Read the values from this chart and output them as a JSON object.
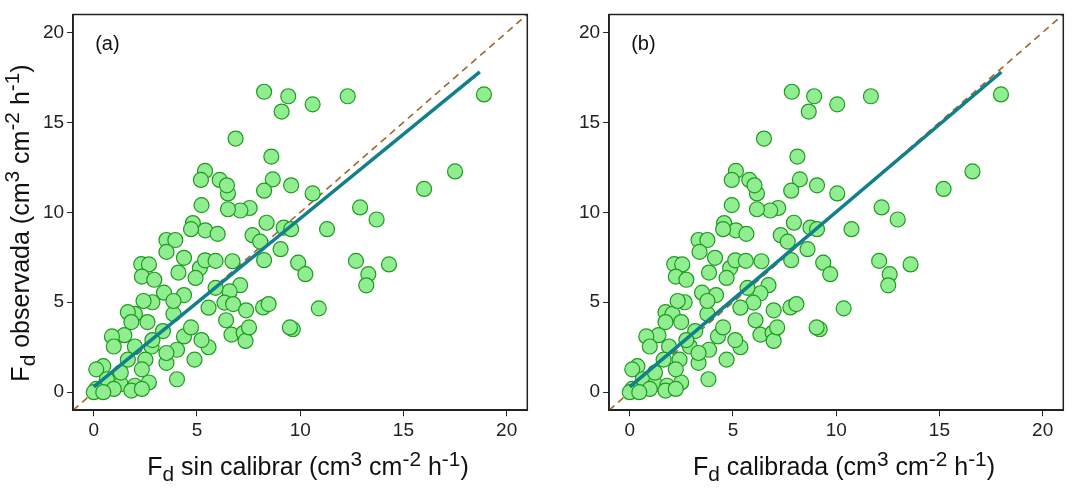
{
  "chart_data": [
    {
      "type": "scatter",
      "annotations": [
        "(a)"
      ],
      "xlabel": "F$_{d}$ sin calibrar (cm$^{3}$ cm$^{-2}$ h$^{-1}$)",
      "ylabel": "F$_{d}$ observada (cm$^{3}$ cm$^{-2}$ h$^{-1}$)",
      "xlim": [
        -1,
        21
      ],
      "ylim": [
        -1,
        21
      ],
      "xticks": [
        0,
        5,
        10,
        15,
        20
      ],
      "yticks": [
        0,
        5,
        10,
        15,
        20
      ],
      "series": [
        {
          "type": "line",
          "color": "#a0682a",
          "line_style": "dashed",
          "marker": "none",
          "x": [
            -1,
            21
          ],
          "values": [
            -1,
            21
          ]
        },
        {
          "type": "scatter",
          "color": "#90ee90",
          "marker": "circle",
          "x": [
            8.25,
            9.42,
            9.1,
            10.6,
            12.3,
            18.9,
            6.87,
            8.6,
            17.5,
            16.0,
            8.67,
            8.25,
            9.56,
            10.6,
            12.9,
            13.7,
            11.3,
            12.7,
            14.3,
            13.3,
            13.2,
            10.9,
            9.64,
            9.5,
            9.9,
            10.25,
            9.05,
            8.37,
            9.2,
            9.56,
            7.69,
            8.06,
            8.25,
            6.72,
            8.2,
            8.47,
            7.55,
            7.1,
            6.5,
            5.22,
            5.39,
            5.19,
            6.1,
            6.5,
            6.45,
            4.8,
            5.4,
            6.0,
            4.71,
            3.52,
            3.95,
            3.52,
            4.37,
            2.3,
            2.67,
            2.33,
            2.93,
            4.1,
            5.14,
            5.39,
            5.9,
            4.93,
            7.09,
            6.58,
            6.33,
            6.75,
            7.38,
            6.41,
            6.67,
            7.26,
            7.35,
            7.52,
            5.56,
            4.88,
            4.03,
            3.4,
            2.84,
            1.99,
            1.65,
            2.6,
            3.86,
            3.35,
            1.48,
            0.88,
            0.97,
            4.37,
            5.22,
            2.8,
            1.99,
            2.5,
            1.65,
            3.52,
            0.46,
            0.12,
            0.63,
            1.31,
            1.99,
            2.67,
            0.12,
            0.97,
            1.82,
            0.0,
            0.46,
            2.33,
            1.31,
            2.33,
            2.84,
            4.03,
            4.71,
            5.56,
            5.9,
            4.37,
            3.86,
            2.41,
            1.82,
            3.52
          ],
          "values": [
            16.7,
            16.45,
            15.6,
            16.0,
            16.45,
            16.55,
            14.1,
            13.1,
            12.27,
            11.3,
            11.83,
            11.2,
            11.5,
            11.05,
            10.27,
            9.6,
            9.06,
            7.3,
            7.1,
            6.56,
            5.94,
            4.66,
            3.5,
            3.6,
            7.2,
            6.56,
            7.95,
            9.42,
            9.15,
            9.06,
            8.73,
            8.37,
            7.34,
            7.28,
            4.71,
            4.9,
            10.24,
            10.1,
            10.17,
            10.4,
            12.3,
            11.8,
            11.8,
            11.05,
            11.5,
            9.4,
            9.0,
            8.8,
            9.06,
            8.46,
            8.46,
            7.8,
            7.47,
            7.12,
            7.1,
            6.43,
            6.25,
            6.65,
            6.9,
            7.33,
            7.3,
            6.35,
            5.95,
            5.6,
            4.98,
            4.9,
            4.55,
            4.0,
            3.2,
            3.3,
            2.85,
            3.6,
            2.5,
            1.81,
            0.72,
            5.53,
            5.0,
            4.35,
            4.45,
            3.9,
            4.35,
            3.4,
            3.17,
            3.1,
            2.54,
            3.1,
            2.9,
            2.54,
            2.54,
            1.81,
            1.81,
            1.63,
            1.45,
            1.27,
            0.72,
            0.45,
            0.36,
            0.54,
            0.18,
            0.18,
            0.09,
            0.0,
            0.0,
            0.18,
            1.09,
            1.27,
            2.9,
            2.36,
            3.6,
            4.7,
            5.8,
            5.4,
            5.07,
            5.07,
            3.9,
            2.18
          ]
        },
        {
          "type": "line",
          "color": "#10808c",
          "line_style": "solid",
          "marker": "none",
          "x": [
            0,
            18.7
          ],
          "values": [
            0.3,
            17.8
          ]
        }
      ]
    },
    {
      "type": "scatter",
      "annotations": [
        "(b)"
      ],
      "xlabel": "F$_{d}$ calibrada (cm$^{3}$ cm$^{-2}$ h$^{-1}$)",
      "xlim": [
        -1,
        21
      ],
      "ylim": [
        -1,
        21
      ],
      "xticks": [
        0,
        5,
        10,
        15,
        20
      ],
      "yticks": [
        0,
        5,
        10,
        15,
        20
      ],
      "series": [
        {
          "type": "line",
          "color": "#a0682a",
          "line_style": "dashed",
          "marker": "none",
          "x": [
            -1,
            21
          ],
          "values": [
            -1,
            21
          ]
        },
        {
          "type": "scatter",
          "color": "#90ee90",
          "marker": "circle",
          "x": [
            7.85,
            8.93,
            8.67,
            10.05,
            11.68,
            17.98,
            6.5,
            8.12,
            16.6,
            15.2,
            8.24,
            7.82,
            9.07,
            10.05,
            12.2,
            12.98,
            10.74,
            12.08,
            13.6,
            12.59,
            12.52,
            10.36,
            9.2,
            9.05,
            9.37,
            9.71,
            8.61,
            7.95,
            8.75,
            9.07,
            7.31,
            7.65,
            7.82,
            6.38,
            7.78,
            8.07,
            7.19,
            6.8,
            6.16,
            4.94,
            5.14,
            4.94,
            5.79,
            6.16,
            6.04,
            4.57,
            5.14,
            5.65,
            4.52,
            3.33,
            3.76,
            3.38,
            4.13,
            2.15,
            2.54,
            2.23,
            2.74,
            3.84,
            4.86,
            5.11,
            5.62,
            4.69,
            6.72,
            6.33,
            5.99,
            6.97,
            6.09,
            6.33,
            6.92,
            6.97,
            7.14,
            5.36,
            4.69,
            3.81,
            3.5,
            2.66,
            1.73,
            2.07,
            2.49,
            3.76,
            3.17,
            1.39,
            0.8,
            0.97,
            4.27,
            5.11,
            2.91,
            1.9,
            2.41,
            1.64,
            3.33,
            0.37,
            0.12,
            0.63,
            1.22,
            1.81,
            2.49,
            0.12,
            0.97,
            1.73,
            0.0,
            0.46,
            2.23,
            1.22,
            2.23,
            2.74,
            3.84,
            4.52,
            5.36,
            5.7,
            4.18,
            3.76,
            2.32,
            1.73,
            3.33
          ],
          "values": [
            16.7,
            16.45,
            15.6,
            16.0,
            16.45,
            16.55,
            14.1,
            13.1,
            12.27,
            11.3,
            11.83,
            11.2,
            11.5,
            11.05,
            10.27,
            9.6,
            9.06,
            7.3,
            7.1,
            6.56,
            5.94,
            4.66,
            3.5,
            3.6,
            7.2,
            6.56,
            7.95,
            9.42,
            9.15,
            9.06,
            8.73,
            8.37,
            7.34,
            7.28,
            4.71,
            4.9,
            10.24,
            10.1,
            10.17,
            10.4,
            12.3,
            11.8,
            11.8,
            11.05,
            11.5,
            9.4,
            9.0,
            8.8,
            9.06,
            8.46,
            8.46,
            7.8,
            7.47,
            7.12,
            7.1,
            6.43,
            6.25,
            6.65,
            6.9,
            7.33,
            7.3,
            6.35,
            5.95,
            5.5,
            4.98,
            4.55,
            4.0,
            3.2,
            3.3,
            2.85,
            3.6,
            2.5,
            1.81,
            0.72,
            5.53,
            5.0,
            4.45,
            4.35,
            3.9,
            4.35,
            3.4,
            3.17,
            3.1,
            2.54,
            3.1,
            2.9,
            2.54,
            2.54,
            1.81,
            1.81,
            1.63,
            1.45,
            1.27,
            0.72,
            0.45,
            0.36,
            0.54,
            0.18,
            0.18,
            0.09,
            0.0,
            0.0,
            0.18,
            1.09,
            1.27,
            2.9,
            2.36,
            3.6,
            4.7,
            5.8,
            5.4,
            5.07,
            5.07,
            3.9,
            2.18
          ]
        },
        {
          "type": "line",
          "color": "#10808c",
          "line_style": "solid",
          "marker": "none",
          "x": [
            0,
            18
          ],
          "values": [
            0.3,
            17.8
          ]
        }
      ]
    }
  ]
}
